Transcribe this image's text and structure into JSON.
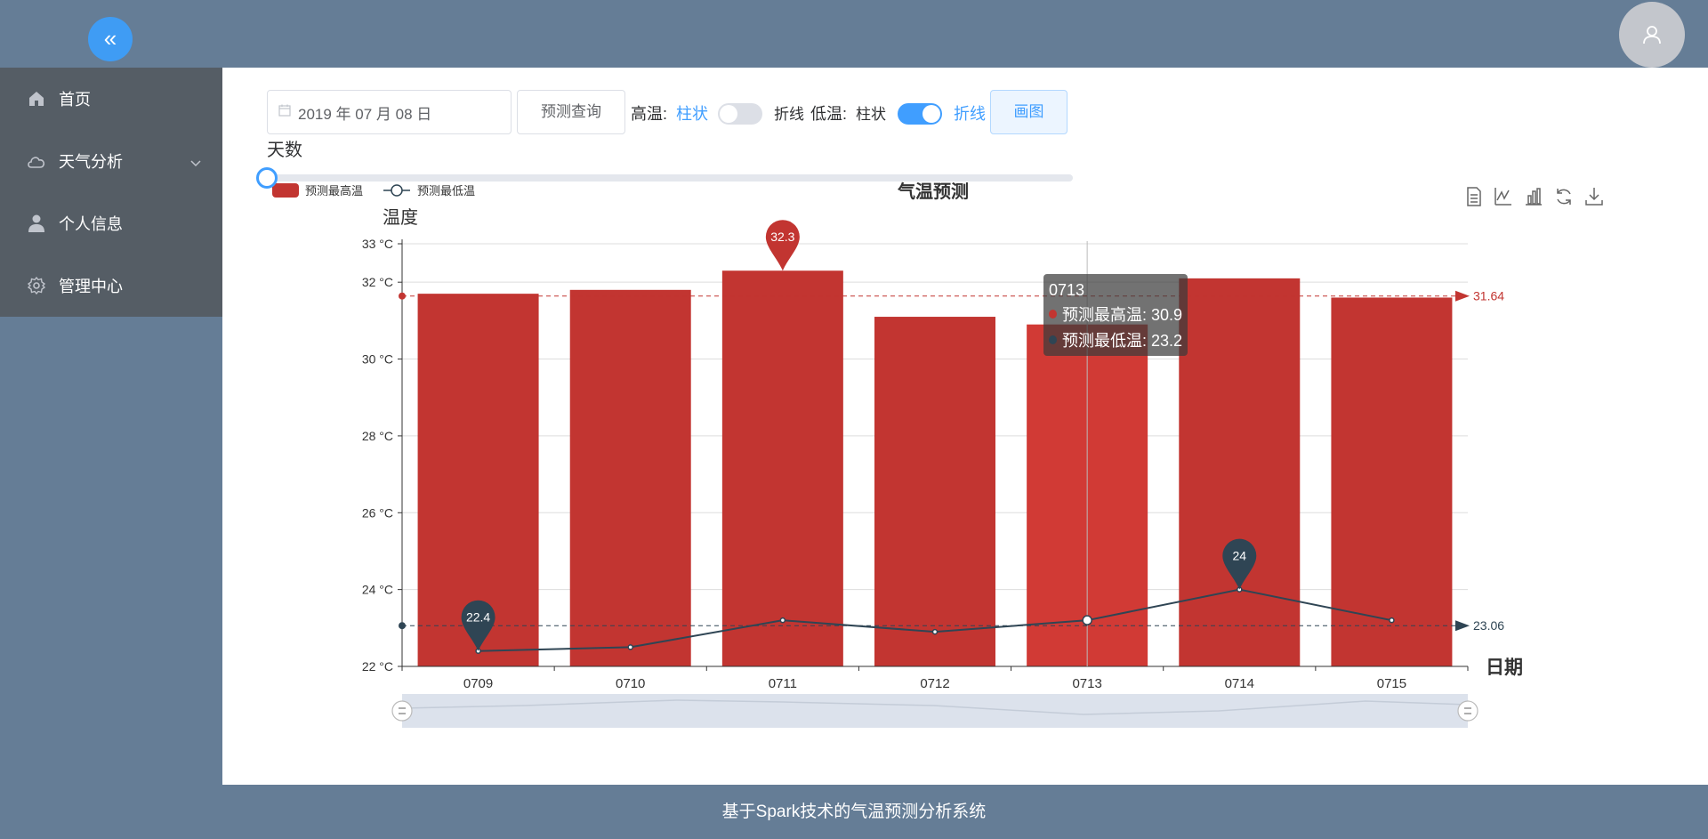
{
  "header": {},
  "sidebar": {
    "items": [
      {
        "label": "首页",
        "icon": "home-icon"
      },
      {
        "label": "天气分析",
        "icon": "cloud-icon",
        "has_submenu": true
      },
      {
        "label": "个人信息",
        "icon": "user-icon"
      },
      {
        "label": "管理中心",
        "icon": "gear-icon"
      }
    ]
  },
  "controls": {
    "date_value": "2019 年 07 月 08 日",
    "query_label": "预测查询",
    "high_label": "高温:",
    "high_bar": "柱状",
    "high_line": "折线",
    "high_switch_on": false,
    "low_label": "低温:",
    "low_bar": "柱状",
    "low_line": "折线",
    "low_switch_on": true,
    "draw_label": "画图",
    "days_label": "天数",
    "days_slider_value": 0
  },
  "chart_data": {
    "type": "bar",
    "title": "气温预测",
    "ylabel": "温度",
    "xlabel": "日期",
    "categories": [
      "0709",
      "0710",
      "0711",
      "0712",
      "0713",
      "0714",
      "0715"
    ],
    "series": [
      {
        "name": "预测最高温",
        "type": "bar",
        "values": [
          31.7,
          31.8,
          32.3,
          31.1,
          30.9,
          32.1,
          31.6
        ],
        "color": "#c23531"
      },
      {
        "name": "预测最低温",
        "type": "line",
        "values": [
          22.4,
          22.5,
          23.2,
          22.9,
          23.2,
          24,
          23.2
        ],
        "color": "#2f4554"
      }
    ],
    "ylim": [
      22,
      33
    ],
    "yticks": [
      22,
      24,
      26,
      28,
      30,
      32,
      33
    ],
    "ytick_suffix": " °C",
    "mark_points": {
      "max_high": "32.3",
      "min_low": "22.4",
      "max_low": "24"
    },
    "mark_lines": {
      "avg_high": "31.64",
      "avg_low": "23.06"
    },
    "tooltip": {
      "category": "0713",
      "high": "预测最高温: 30.9",
      "low": "预测最低温: 23.2"
    },
    "legend_position": "top-left",
    "toolbox": [
      "data-view-icon",
      "line-chart-icon",
      "bar-chart-icon",
      "restore-icon",
      "download-icon"
    ],
    "grid": true
  },
  "footer": {
    "text": "基于Spark技术的气温预测分析系统"
  }
}
